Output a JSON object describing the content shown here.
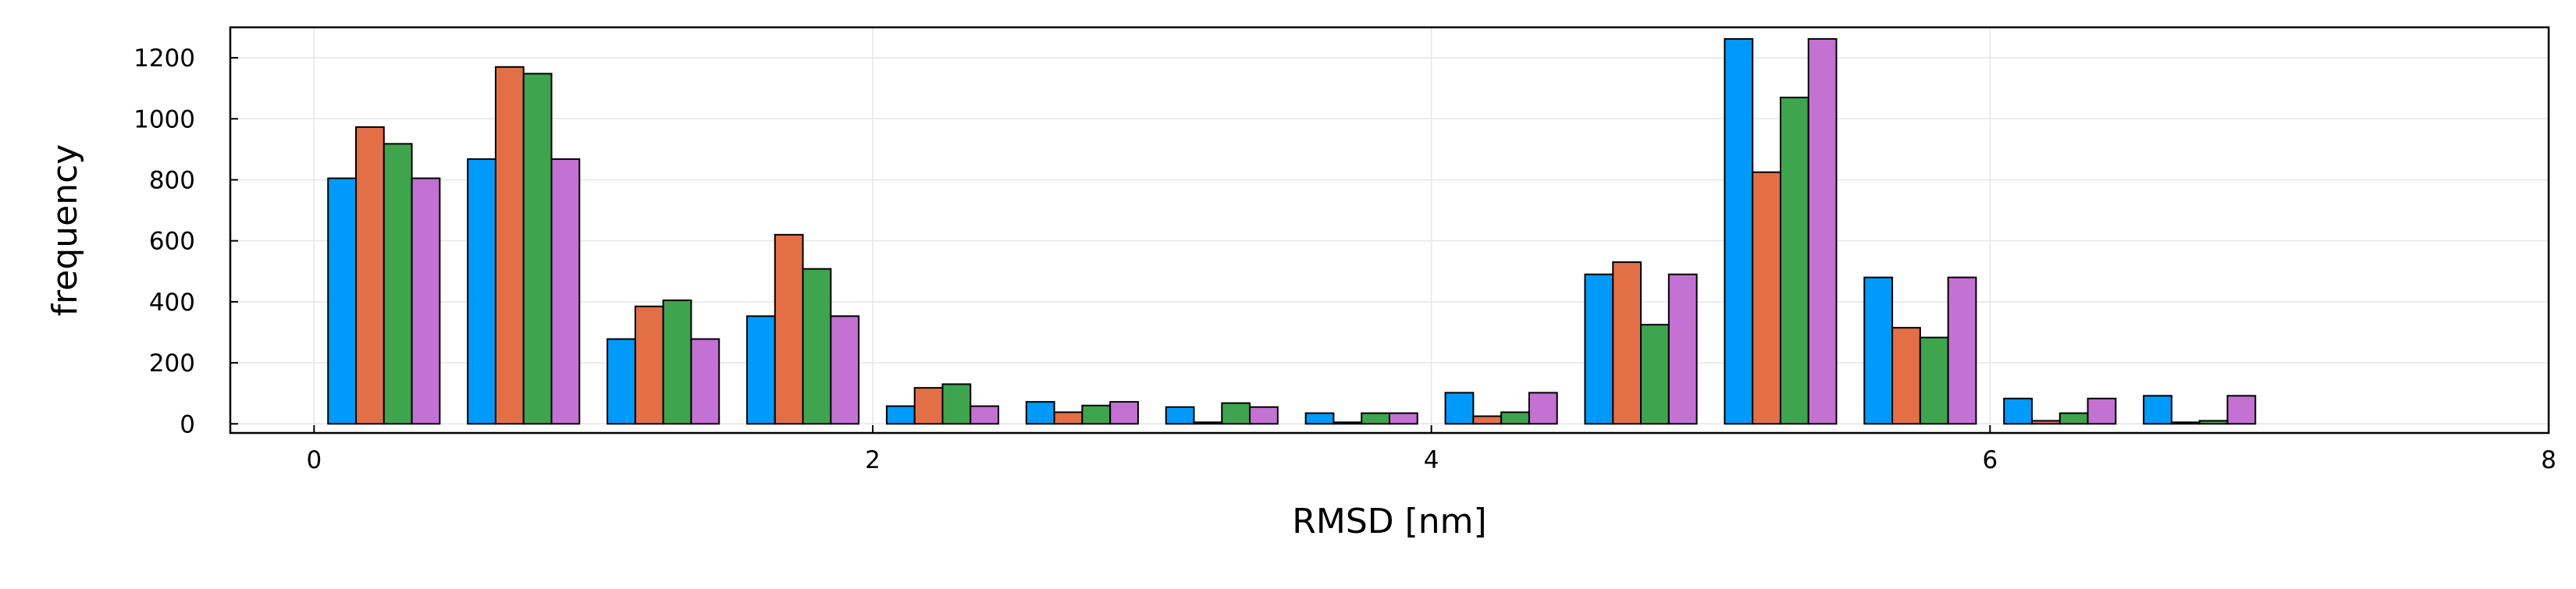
{
  "chart_data": {
    "type": "bar",
    "xlabel": "RMSD [nm]",
    "ylabel": "frequency",
    "xlim": [
      -0.3,
      8.0
    ],
    "ylim": [
      -30,
      1300
    ],
    "xticks": [
      0,
      2,
      4,
      6,
      8
    ],
    "yticks": [
      0,
      200,
      400,
      600,
      800,
      1000,
      1200
    ],
    "grid": true,
    "legend": "none",
    "bin_centers": [
      0.25,
      0.75,
      1.25,
      1.75,
      2.25,
      2.75,
      3.25,
      3.75,
      4.25,
      4.75,
      5.25,
      5.75,
      6.25,
      6.75
    ],
    "series": [
      {
        "color": "#009AFA",
        "values": [
          805,
          868,
          278,
          353,
          58,
          72,
          55,
          35,
          102,
          490,
          1262,
          480,
          83,
          92
        ]
      },
      {
        "color": "#E36F47",
        "values": [
          973,
          1170,
          385,
          620,
          118,
          38,
          5,
          5,
          25,
          530,
          825,
          315,
          10,
          5
        ]
      },
      {
        "color": "#3EA44E",
        "values": [
          918,
          1148,
          405,
          508,
          130,
          60,
          68,
          35,
          38,
          325,
          1070,
          283,
          35,
          10
        ]
      },
      {
        "color": "#C371D2",
        "values": [
          805,
          868,
          278,
          353,
          58,
          72,
          55,
          35,
          102,
          490,
          1262,
          480,
          83,
          92
        ]
      }
    ]
  }
}
